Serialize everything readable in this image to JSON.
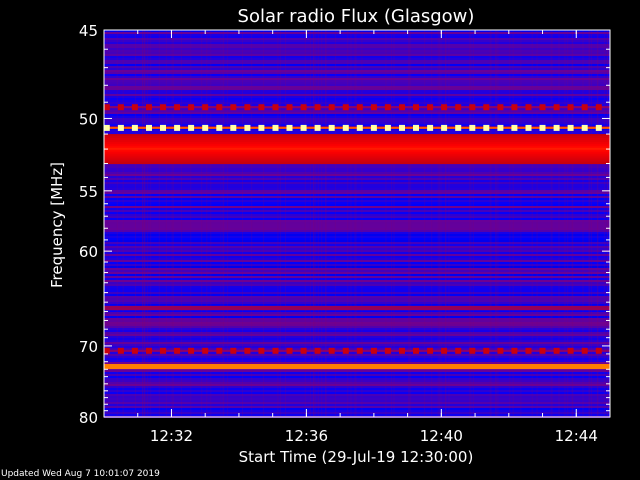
{
  "chart_data": {
    "type": "heatmap",
    "title": "Solar radio Flux (Glasgow)",
    "xlabel": "Start Time (29-Jul-19 12:30:00)",
    "ylabel": "Frequency [MHz]",
    "x_range": [
      "12:30:00",
      "12:45:00"
    ],
    "x_ticks": [
      "12:32",
      "12:36",
      "12:40",
      "12:44"
    ],
    "y_range": [
      45,
      80
    ],
    "y_scale": "reciprocal",
    "y_ticks": [
      45,
      50,
      55,
      60,
      70,
      80
    ],
    "colormap": [
      "#000040",
      "#0000ff",
      "#800080",
      "#c00010",
      "#ff0000",
      "#ff8000",
      "#ffff00",
      "#ffffff"
    ],
    "features": [
      {
        "kind": "band",
        "freq_mhz": [
          51.0,
          53.0
        ],
        "level": "high"
      },
      {
        "kind": "band",
        "freq_mhz": [
          65.4,
          65.8
        ],
        "level": "medium"
      },
      {
        "kind": "band",
        "freq_mhz": [
          72.3,
          72.9
        ],
        "level": "saturated"
      },
      {
        "kind": "pulse-train",
        "freq_mhz": 49.3,
        "level": "medium"
      },
      {
        "kind": "pulse-train",
        "freq_mhz": 50.6,
        "level": "saturated"
      },
      {
        "kind": "pulse-train",
        "freq_mhz": 70.6,
        "level": "medium"
      }
    ]
  },
  "footer": {
    "updated": "Updated Wed Aug  7 10:01:07 2019"
  }
}
